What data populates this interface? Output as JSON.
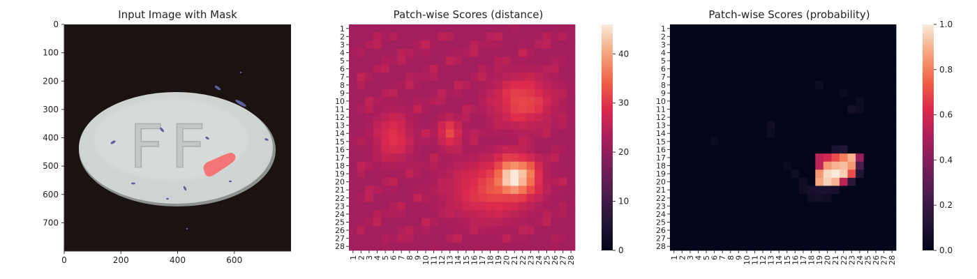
{
  "chart_data": [
    {
      "type": "image",
      "title": "Input Image with Mask",
      "xticks": [
        "0",
        "200",
        "400",
        "600"
      ],
      "yticks": [
        "0",
        "100",
        "200",
        "300",
        "400",
        "500",
        "600",
        "700"
      ],
      "xlim": [
        0,
        800
      ],
      "ylim": [
        800,
        0
      ],
      "xtick_values": [
        0,
        200,
        400,
        600
      ],
      "ytick_values": [
        0,
        100,
        200,
        300,
        400,
        500,
        600,
        700
      ],
      "background_color": "#1a1311",
      "object_color": "#cfd4d3",
      "object_text": "FF",
      "speck_color": "#5d5f9d",
      "mask_color": "#f56c6c"
    },
    {
      "type": "heatmap",
      "title": "Patch-wise Scores (distance)",
      "rows": 28,
      "cols": 28,
      "row_labels": [
        "1",
        "2",
        "3",
        "4",
        "5",
        "6",
        "7",
        "8",
        "9",
        "10",
        "11",
        "12",
        "13",
        "14",
        "15",
        "16",
        "17",
        "18",
        "19",
        "20",
        "21",
        "22",
        "23",
        "24",
        "25",
        "26",
        "27",
        "28"
      ],
      "col_labels": [
        "1",
        "2",
        "3",
        "4",
        "5",
        "6",
        "7",
        "8",
        "9",
        "10",
        "11",
        "12",
        "13",
        "14",
        "15",
        "16",
        "17",
        "18",
        "19",
        "20",
        "21",
        "22",
        "23",
        "24",
        "25",
        "26",
        "27",
        "28"
      ],
      "colormap": "rocket",
      "colorbar": {
        "min": 0,
        "max": 46,
        "ticks": [
          0,
          10,
          20,
          30,
          40
        ]
      },
      "baseline": 22,
      "hotspots": [
        {
          "row": 19.5,
          "col": 21,
          "peak": 46,
          "sigma_row": 1.8,
          "sigma_col": 2.0
        },
        {
          "row": 10,
          "col": 22,
          "peak": 32,
          "sigma_row": 2.2,
          "sigma_col": 2.6
        },
        {
          "row": 14.5,
          "col": 6,
          "peak": 30,
          "sigma_row": 2.0,
          "sigma_col": 1.5
        },
        {
          "row": 14,
          "col": 13,
          "peak": 32,
          "sigma_row": 1.2,
          "sigma_col": 1.0
        },
        {
          "row": 21,
          "col": 18,
          "peak": 31,
          "sigma_row": 2.5,
          "sigma_col": 3.5
        }
      ]
    },
    {
      "type": "heatmap",
      "title": "Patch-wise Scores (probability)",
      "rows": 28,
      "cols": 28,
      "row_labels": [
        "1",
        "2",
        "3",
        "4",
        "5",
        "6",
        "7",
        "8",
        "9",
        "10",
        "11",
        "12",
        "13",
        "14",
        "15",
        "16",
        "17",
        "18",
        "19",
        "20",
        "21",
        "22",
        "23",
        "24",
        "25",
        "26",
        "27",
        "28"
      ],
      "col_labels": [
        "1",
        "2",
        "3",
        "4",
        "5",
        "6",
        "7",
        "8",
        "9",
        "10",
        "11",
        "12",
        "13",
        "14",
        "15",
        "16",
        "17",
        "18",
        "19",
        "20",
        "21",
        "22",
        "23",
        "24",
        "25",
        "26",
        "27",
        "28"
      ],
      "colormap": "rocket",
      "colorbar": {
        "min": 0.0,
        "max": 1.0,
        "ticks": [
          "0.0",
          "0.2",
          "0.4",
          "0.6",
          "0.8",
          "1.0"
        ],
        "tick_values": [
          0,
          0.2,
          0.4,
          0.6,
          0.8,
          1.0
        ]
      },
      "cells": [
        {
          "row": 17,
          "col": 19,
          "value": 0.55
        },
        {
          "row": 17,
          "col": 20,
          "value": 0.6
        },
        {
          "row": 17,
          "col": 21,
          "value": 0.7
        },
        {
          "row": 17,
          "col": 22,
          "value": 0.8
        },
        {
          "row": 17,
          "col": 23,
          "value": 0.9
        },
        {
          "row": 17,
          "col": 24,
          "value": 0.45
        },
        {
          "row": 18,
          "col": 19,
          "value": 0.55
        },
        {
          "row": 18,
          "col": 20,
          "value": 0.85
        },
        {
          "row": 18,
          "col": 21,
          "value": 0.9
        },
        {
          "row": 18,
          "col": 22,
          "value": 0.92
        },
        {
          "row": 18,
          "col": 23,
          "value": 0.85
        },
        {
          "row": 18,
          "col": 24,
          "value": 0.25
        },
        {
          "row": 19,
          "col": 19,
          "value": 0.85
        },
        {
          "row": 19,
          "col": 20,
          "value": 0.97
        },
        {
          "row": 19,
          "col": 21,
          "value": 1.0
        },
        {
          "row": 19,
          "col": 22,
          "value": 0.95
        },
        {
          "row": 19,
          "col": 23,
          "value": 0.7
        },
        {
          "row": 19,
          "col": 24,
          "value": 0.12
        },
        {
          "row": 20,
          "col": 19,
          "value": 0.88
        },
        {
          "row": 20,
          "col": 20,
          "value": 0.95
        },
        {
          "row": 20,
          "col": 21,
          "value": 0.9
        },
        {
          "row": 20,
          "col": 22,
          "value": 0.55
        },
        {
          "row": 20,
          "col": 23,
          "value": 0.15
        },
        {
          "row": 16,
          "col": 21,
          "value": 0.1
        },
        {
          "row": 16,
          "col": 22,
          "value": 0.12
        },
        {
          "row": 21,
          "col": 17,
          "value": 0.06
        },
        {
          "row": 21,
          "col": 18,
          "value": 0.08
        },
        {
          "row": 21,
          "col": 19,
          "value": 0.09
        },
        {
          "row": 21,
          "col": 20,
          "value": 0.1
        },
        {
          "row": 21,
          "col": 21,
          "value": 0.08
        },
        {
          "row": 22,
          "col": 18,
          "value": 0.06
        },
        {
          "row": 22,
          "col": 19,
          "value": 0.07
        },
        {
          "row": 22,
          "col": 20,
          "value": 0.06
        },
        {
          "row": 19,
          "col": 16,
          "value": 0.05
        },
        {
          "row": 20,
          "col": 17,
          "value": 0.06
        },
        {
          "row": 18,
          "col": 15,
          "value": 0.04
        },
        {
          "row": 13,
          "col": 13,
          "value": 0.06
        },
        {
          "row": 14,
          "col": 13,
          "value": 0.05
        },
        {
          "row": 8,
          "col": 19,
          "value": 0.05
        },
        {
          "row": 9,
          "col": 22,
          "value": 0.04
        },
        {
          "row": 10,
          "col": 24,
          "value": 0.05
        },
        {
          "row": 11,
          "col": 23,
          "value": 0.07
        },
        {
          "row": 11,
          "col": 24,
          "value": 0.05
        },
        {
          "row": 15,
          "col": 6,
          "value": 0.04
        }
      ]
    }
  ]
}
